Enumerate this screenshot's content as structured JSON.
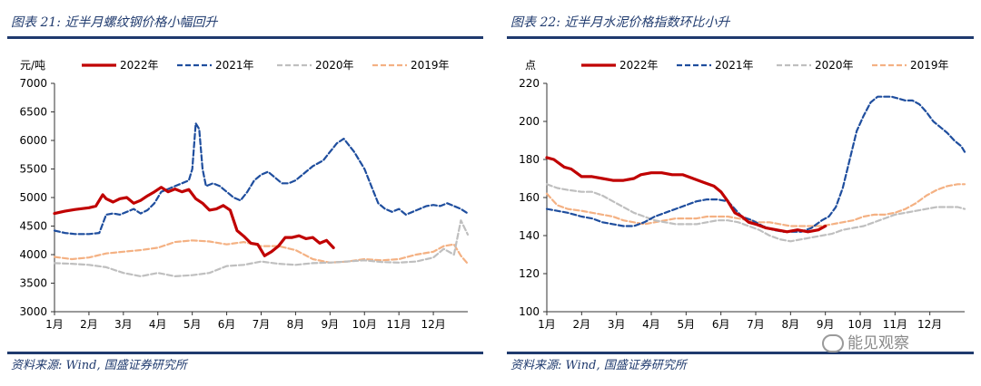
{
  "colors": {
    "title": "#1f3a6e",
    "s2022": "#c00000",
    "s2021": "#1f4e9e",
    "s2020": "#bfbfbf",
    "s2019": "#f4b183"
  },
  "watermark": "能见观察",
  "chart_data": [
    {
      "type": "line",
      "figure_label": "图表 21:",
      "title": "近半月螺纹钢价格小幅回升",
      "source": "资料来源: Wind, 国盛证券研究所",
      "unit": "元/吨",
      "ylim": [
        3000,
        7000
      ],
      "yticks": [
        3000,
        3500,
        4000,
        4500,
        5000,
        5500,
        6000,
        6500,
        7000
      ],
      "xlim": [
        1,
        13
      ],
      "xticks": [
        "1月",
        "2月",
        "3月",
        "4月",
        "5月",
        "6月",
        "7月",
        "8月",
        "9月",
        "10月",
        "11月",
        "12月"
      ],
      "series": [
        {
          "name": "2022年",
          "x": [
            1,
            1.3,
            1.6,
            2,
            2.2,
            2.4,
            2.5,
            2.7,
            2.9,
            3.1,
            3.3,
            3.5,
            3.7,
            3.9,
            4.1,
            4.3,
            4.5,
            4.7,
            4.9,
            5.1,
            5.3,
            5.5,
            5.7,
            5.9,
            6.1,
            6.3,
            6.5,
            6.7,
            6.9,
            7.1,
            7.3,
            7.5,
            7.7,
            7.9,
            8.1,
            8.3,
            8.5,
            8.7,
            8.9,
            9.1
          ],
          "values": [
            4720,
            4760,
            4790,
            4820,
            4850,
            5050,
            4980,
            4920,
            4980,
            5000,
            4900,
            4950,
            5030,
            5100,
            5180,
            5100,
            5150,
            5100,
            5140,
            4980,
            4900,
            4780,
            4800,
            4860,
            4780,
            4420,
            4320,
            4200,
            4180,
            3980,
            4050,
            4150,
            4300,
            4300,
            4330,
            4280,
            4300,
            4200,
            4250,
            4120
          ]
        },
        {
          "name": "2021年",
          "x": [
            1,
            1.3,
            1.6,
            2,
            2.3,
            2.5,
            2.7,
            2.9,
            3.1,
            3.3,
            3.5,
            3.7,
            3.9,
            4.1,
            4.3,
            4.5,
            4.7,
            4.9,
            5,
            5.1,
            5.2,
            5.3,
            5.4,
            5.6,
            5.8,
            6,
            6.2,
            6.4,
            6.6,
            6.8,
            7,
            7.2,
            7.4,
            7.6,
            7.8,
            8,
            8.2,
            8.5,
            8.8,
            9,
            9.2,
            9.4,
            9.7,
            10,
            10.2,
            10.4,
            10.6,
            10.8,
            11,
            11.2,
            11.4,
            11.6,
            11.8,
            12,
            12.2,
            12.4,
            12.6,
            12.8,
            13
          ],
          "values": [
            4420,
            4380,
            4360,
            4360,
            4380,
            4700,
            4720,
            4700,
            4750,
            4800,
            4720,
            4780,
            4900,
            5100,
            5150,
            5200,
            5250,
            5300,
            5500,
            6300,
            6200,
            5500,
            5200,
            5250,
            5200,
            5100,
            5000,
            4950,
            5100,
            5300,
            5400,
            5450,
            5350,
            5250,
            5250,
            5300,
            5400,
            5550,
            5650,
            5800,
            5950,
            6030,
            5800,
            5500,
            5200,
            4900,
            4800,
            4750,
            4800,
            4700,
            4750,
            4800,
            4850,
            4870,
            4850,
            4900,
            4850,
            4800,
            4720
          ]
        },
        {
          "name": "2020年",
          "x": [
            1,
            1.5,
            2,
            2.5,
            3,
            3.5,
            4,
            4.5,
            5,
            5.5,
            6,
            6.5,
            7,
            7.5,
            8,
            8.5,
            9,
            9.5,
            10,
            10.5,
            11,
            11.5,
            12,
            12.3,
            12.6,
            12.8,
            13
          ],
          "values": [
            3850,
            3840,
            3820,
            3780,
            3680,
            3620,
            3680,
            3620,
            3640,
            3680,
            3800,
            3820,
            3880,
            3840,
            3820,
            3850,
            3860,
            3880,
            3900,
            3870,
            3860,
            3880,
            3950,
            4100,
            4000,
            4600,
            4350
          ]
        },
        {
          "name": "2019年",
          "x": [
            1,
            1.5,
            2,
            2.5,
            3,
            3.5,
            4,
            4.5,
            5,
            5.5,
            6,
            6.5,
            7,
            7.5,
            8,
            8.5,
            9,
            9.5,
            10,
            10.5,
            11,
            11.5,
            12,
            12.3,
            12.6,
            12.8,
            13
          ],
          "values": [
            3960,
            3920,
            3950,
            4020,
            4050,
            4080,
            4120,
            4220,
            4250,
            4230,
            4180,
            4220,
            4150,
            4150,
            4080,
            3920,
            3860,
            3880,
            3920,
            3900,
            3920,
            4000,
            4050,
            4150,
            4180,
            3980,
            3840
          ]
        }
      ]
    },
    {
      "type": "line",
      "figure_label": "图表 22:",
      "title": "近半月水泥价格指数环比小升",
      "source": "资料来源: Wind, 国盛证券研究所",
      "unit": "点",
      "ylim": [
        100,
        220
      ],
      "yticks": [
        100,
        120,
        140,
        160,
        180,
        200,
        220
      ],
      "xlim": [
        1,
        13
      ],
      "xticks": [
        "1月",
        "2月",
        "3月",
        "4月",
        "5月",
        "6月",
        "7月",
        "8月",
        "9月",
        "10月",
        "11月",
        "12月"
      ],
      "series": [
        {
          "name": "2022年",
          "x": [
            1,
            1.2,
            1.5,
            1.7,
            2,
            2.3,
            2.6,
            2.9,
            3.2,
            3.5,
            3.7,
            4,
            4.3,
            4.6,
            4.9,
            5.2,
            5.5,
            5.8,
            6,
            6.2,
            6.4,
            6.6,
            6.8,
            7,
            7.3,
            7.6,
            7.9,
            8.2,
            8.5,
            8.8,
            9
          ],
          "values": [
            181,
            180,
            176,
            175,
            171,
            171,
            170,
            169,
            169,
            170,
            172,
            173,
            173,
            172,
            172,
            170,
            168,
            166,
            163,
            158,
            152,
            150,
            147,
            146,
            144,
            143,
            142,
            143,
            142,
            143,
            145
          ]
        },
        {
          "name": "2021年",
          "x": [
            1,
            1.3,
            1.6,
            2,
            2.3,
            2.6,
            2.9,
            3.2,
            3.5,
            3.8,
            4.1,
            4.4,
            4.7,
            5,
            5.3,
            5.6,
            5.9,
            6.2,
            6.4,
            6.6,
            6.9,
            7.2,
            7.5,
            7.8,
            8,
            8.3,
            8.6,
            8.9,
            9.1,
            9.3,
            9.5,
            9.7,
            9.9,
            10.1,
            10.3,
            10.5,
            10.7,
            10.9,
            11.1,
            11.3,
            11.5,
            11.7,
            11.9,
            12.1,
            12.3,
            12.5,
            12.7,
            12.9,
            13
          ],
          "values": [
            154,
            153,
            152,
            150,
            149,
            147,
            146,
            145,
            145,
            147,
            150,
            152,
            154,
            156,
            158,
            159,
            159,
            158,
            154,
            150,
            148,
            145,
            143,
            142,
            142,
            142,
            144,
            148,
            150,
            155,
            165,
            180,
            195,
            203,
            210,
            213,
            213,
            213,
            212,
            211,
            211,
            209,
            205,
            200,
            197,
            194,
            190,
            187,
            184
          ]
        },
        {
          "name": "2020年",
          "x": [
            1,
            1.3,
            1.6,
            2,
            2.3,
            2.6,
            2.9,
            3.2,
            3.5,
            3.8,
            4.1,
            4.4,
            4.7,
            5,
            5.3,
            5.6,
            5.9,
            6.2,
            6.5,
            6.8,
            7.1,
            7.4,
            7.7,
            8,
            8.3,
            8.6,
            8.9,
            9.2,
            9.5,
            9.8,
            10.1,
            10.4,
            10.7,
            11,
            11.3,
            11.6,
            11.9,
            12.2,
            12.5,
            12.8,
            13
          ],
          "values": [
            167,
            165,
            164,
            163,
            163,
            161,
            158,
            155,
            152,
            150,
            148,
            147,
            146,
            146,
            146,
            147,
            148,
            148,
            147,
            145,
            143,
            140,
            138,
            137,
            138,
            139,
            140,
            141,
            143,
            144,
            145,
            147,
            149,
            151,
            152,
            153,
            154,
            155,
            155,
            155,
            154
          ]
        },
        {
          "name": "2019年",
          "x": [
            1,
            1.1,
            1.3,
            1.6,
            2,
            2.3,
            2.6,
            2.9,
            3.2,
            3.5,
            3.8,
            4.1,
            4.4,
            4.7,
            5,
            5.3,
            5.6,
            5.9,
            6.2,
            6.5,
            6.8,
            7.1,
            7.4,
            7.7,
            8,
            8.3,
            8.6,
            8.9,
            9.2,
            9.5,
            9.8,
            10.1,
            10.4,
            10.7,
            11,
            11.3,
            11.6,
            11.9,
            12.2,
            12.5,
            12.8,
            13
          ],
          "values": [
            162,
            160,
            156,
            154,
            153,
            152,
            151,
            150,
            148,
            147,
            146,
            147,
            148,
            149,
            149,
            149,
            150,
            150,
            150,
            149,
            148,
            147,
            147,
            146,
            145,
            145,
            145,
            145,
            146,
            147,
            148,
            150,
            151,
            151,
            152,
            154,
            157,
            161,
            164,
            166,
            167,
            167
          ]
        }
      ]
    }
  ]
}
